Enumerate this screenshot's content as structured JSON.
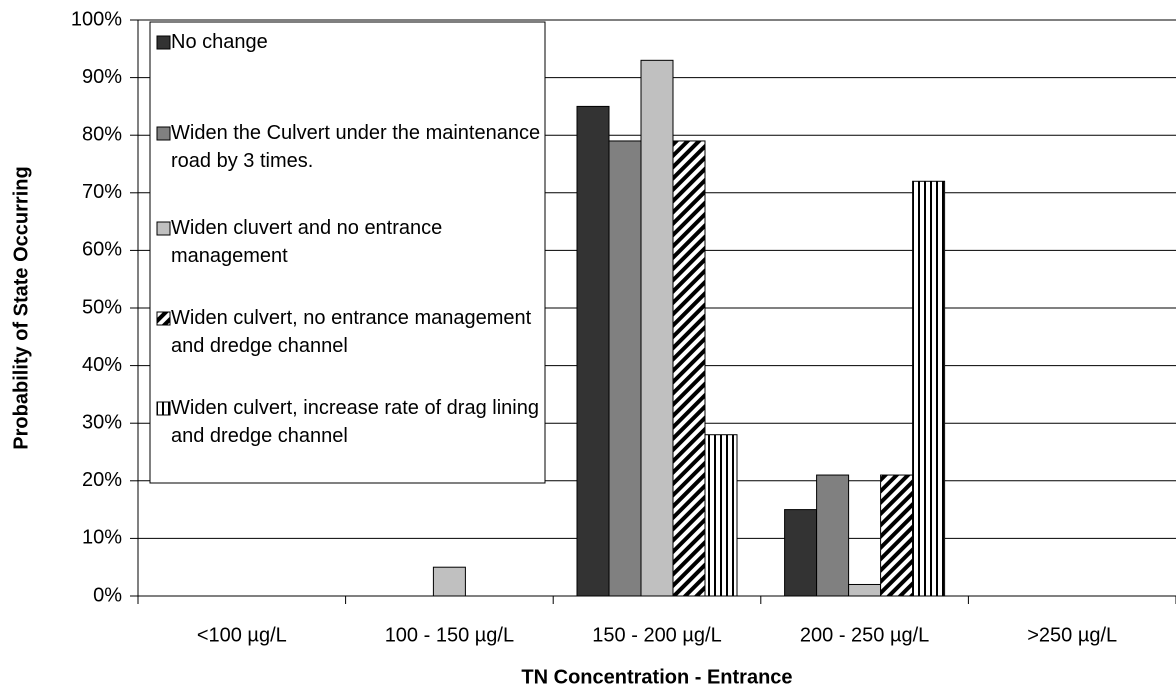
{
  "chart_data": {
    "type": "bar",
    "y_axis_label": "Probability of State Occurring",
    "x_axis_label": "TN Concentration - Entrance",
    "categories": [
      "<100 µg/L",
      "100 - 150 µg/L",
      "150 - 200 µg/L",
      "200 - 250 µg/L",
      ">250 µg/L"
    ],
    "series": [
      {
        "name": "No change",
        "color": "#333333",
        "pattern": "solid",
        "values": [
          0,
          0,
          85,
          15,
          0
        ]
      },
      {
        "name": "Widen the Culvert under the maintenance road by 3 times.",
        "color": "#808080",
        "pattern": "solid",
        "values": [
          0,
          0,
          79,
          21,
          0
        ]
      },
      {
        "name": "Widen cluvert and no entrance management",
        "color": "#c0c0c0",
        "pattern": "solid",
        "values": [
          0,
          5,
          93,
          2,
          0
        ]
      },
      {
        "name": "Widen culvert, no entrance management and dredge channel",
        "color": "#000000",
        "pattern": "diagonal-hatch",
        "values": [
          0,
          0,
          79,
          21,
          0
        ]
      },
      {
        "name": "Widen culvert, increase rate of drag lining and dredge channel",
        "color": "#000000",
        "pattern": "vertical-stripes",
        "values": [
          0,
          0,
          28,
          72,
          0
        ]
      }
    ],
    "ylim": [
      0,
      100
    ],
    "yticks": [
      {
        "value": 0,
        "label": "0%"
      },
      {
        "value": 10,
        "label": "10%"
      },
      {
        "value": 20,
        "label": "20%"
      },
      {
        "value": 30,
        "label": "30%"
      },
      {
        "value": 40,
        "label": "40%"
      },
      {
        "value": 50,
        "label": "50%"
      },
      {
        "value": 60,
        "label": "60%"
      },
      {
        "value": 70,
        "label": "70%"
      },
      {
        "value": 80,
        "label": "80%"
      },
      {
        "value": 90,
        "label": "90%"
      },
      {
        "value": 100,
        "label": "100%"
      }
    ],
    "grid": true,
    "legend": "top-left"
  }
}
